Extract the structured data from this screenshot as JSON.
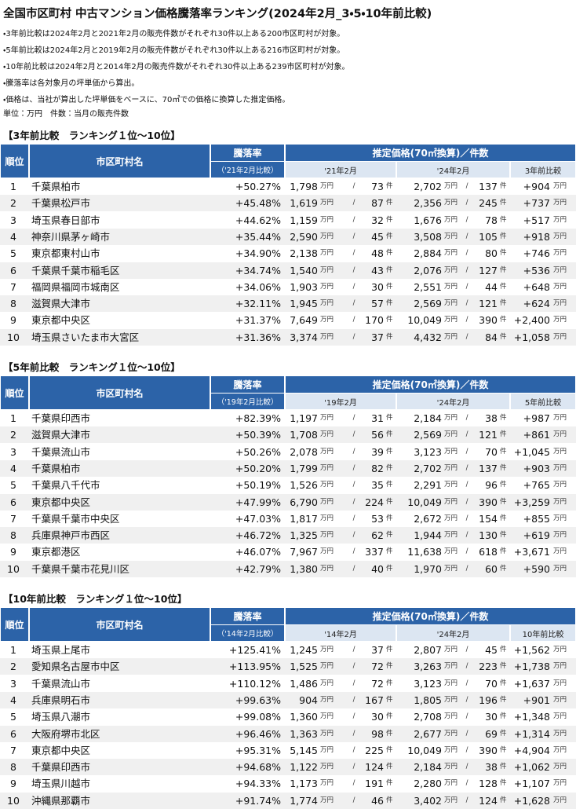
{
  "header": {
    "title": "全国市区町村 中古マンション価格騰落率ランキング(2024年2月_3・5・10年前比較)",
    "notes": [
      "・3年前比較は2024年2月と2021年2月の販売件数がそれぞれ30件以上ある200市区町村が対象。",
      "・5年前比較は2024年2月と2019年2月の販売件数がそれぞれ30件以上ある216市区町村が対象。",
      "・10年前比較は2024年2月と2014年2月の販売件数がそれぞれ30件以上ある239市区町村が対象。",
      "・騰落率は各対象月の坪単価から算出。",
      "・価格は、当社が算出した坪単価をベースに、70㎡での価格に換算した推定価格。"
    ],
    "unit_note": "単位：万円　件数：当月の販売件数"
  },
  "units": {
    "yen": "万円",
    "slash": "/",
    "count": "件"
  },
  "sections": [
    {
      "heading": "【3年前比較　ランキング１位～10位】",
      "columns": {
        "rank": "順位",
        "name": "市区町村名",
        "rate": "騰落率",
        "rate_sub": "（'21年2月比較）",
        "price_group": "推定価格(70㎡換算)／件数",
        "old": "'21年2月",
        "new": "'24年2月",
        "diff": "3年前比較"
      },
      "rows": [
        [
          1,
          "千葉県柏市",
          "+50.27%",
          "1,798",
          "73",
          "2,702",
          "137",
          "+904"
        ],
        [
          2,
          "千葉県松戸市",
          "+45.48%",
          "1,619",
          "87",
          "2,356",
          "245",
          "+737"
        ],
        [
          3,
          "埼玉県春日部市",
          "+44.62%",
          "1,159",
          "32",
          "1,676",
          "78",
          "+517"
        ],
        [
          4,
          "神奈川県茅ヶ崎市",
          "+35.44%",
          "2,590",
          "45",
          "3,508",
          "105",
          "+918"
        ],
        [
          5,
          "東京都東村山市",
          "+34.90%",
          "2,138",
          "48",
          "2,884",
          "80",
          "+746"
        ],
        [
          6,
          "千葉県千葉市稲毛区",
          "+34.74%",
          "1,540",
          "43",
          "2,076",
          "127",
          "+536"
        ],
        [
          7,
          "福岡県福岡市城南区",
          "+34.06%",
          "1,903",
          "30",
          "2,551",
          "44",
          "+648"
        ],
        [
          8,
          "滋賀県大津市",
          "+32.11%",
          "1,945",
          "57",
          "2,569",
          "121",
          "+624"
        ],
        [
          9,
          "東京都中央区",
          "+31.37%",
          "7,649",
          "170",
          "10,049",
          "390",
          "+2,400"
        ],
        [
          10,
          "埼玉県さいたま市大宮区",
          "+31.36%",
          "3,374",
          "37",
          "4,432",
          "84",
          "+1,058"
        ]
      ]
    },
    {
      "heading": "【5年前比較　ランキング１位～10位】",
      "columns": {
        "rank": "順位",
        "name": "市区町村名",
        "rate": "騰落率",
        "rate_sub": "（'19年2月比較）",
        "price_group": "推定価格(70㎡換算)／件数",
        "old": "'19年2月",
        "new": "'24年2月",
        "diff": "5年前比較"
      },
      "rows": [
        [
          1,
          "千葉県印西市",
          "+82.39%",
          "1,197",
          "31",
          "2,184",
          "38",
          "+987"
        ],
        [
          2,
          "滋賀県大津市",
          "+50.39%",
          "1,708",
          "56",
          "2,569",
          "121",
          "+861"
        ],
        [
          3,
          "千葉県流山市",
          "+50.26%",
          "2,078",
          "39",
          "3,123",
          "70",
          "+1,045"
        ],
        [
          4,
          "千葉県柏市",
          "+50.20%",
          "1,799",
          "82",
          "2,702",
          "137",
          "+903"
        ],
        [
          5,
          "千葉県八千代市",
          "+50.19%",
          "1,526",
          "35",
          "2,291",
          "96",
          "+765"
        ],
        [
          6,
          "東京都中央区",
          "+47.99%",
          "6,790",
          "224",
          "10,049",
          "390",
          "+3,259"
        ],
        [
          7,
          "千葉県千葉市中央区",
          "+47.03%",
          "1,817",
          "53",
          "2,672",
          "154",
          "+855"
        ],
        [
          8,
          "兵庫県神戸市西区",
          "+46.72%",
          "1,325",
          "62",
          "1,944",
          "130",
          "+619"
        ],
        [
          9,
          "東京都港区",
          "+46.07%",
          "7,967",
          "337",
          "11,638",
          "618",
          "+3,671"
        ],
        [
          10,
          "千葉県千葉市花見川区",
          "+42.79%",
          "1,380",
          "40",
          "1,970",
          "60",
          "+590"
        ]
      ]
    },
    {
      "heading": "【10年前比較　ランキング１位～10位】",
      "columns": {
        "rank": "順位",
        "name": "市区町村名",
        "rate": "騰落率",
        "rate_sub": "（'14年2月比較）",
        "price_group": "推定価格(70㎡換算)／件数",
        "old": "'14年2月",
        "new": "'24年2月",
        "diff": "10年前比較"
      },
      "rows": [
        [
          1,
          "埼玉県上尾市",
          "+125.41%",
          "1,245",
          "37",
          "2,807",
          "45",
          "+1,562"
        ],
        [
          2,
          "愛知県名古屋市中区",
          "+113.95%",
          "1,525",
          "72",
          "3,263",
          "223",
          "+1,738"
        ],
        [
          3,
          "千葉県流山市",
          "+110.12%",
          "1,486",
          "72",
          "3,123",
          "70",
          "+1,637"
        ],
        [
          4,
          "兵庫県明石市",
          "+99.63%",
          "904",
          "167",
          "1,805",
          "196",
          "+901"
        ],
        [
          5,
          "埼玉県八潮市",
          "+99.08%",
          "1,360",
          "30",
          "2,708",
          "30",
          "+1,348"
        ],
        [
          6,
          "大阪府堺市北区",
          "+96.46%",
          "1,363",
          "98",
          "2,677",
          "69",
          "+1,314"
        ],
        [
          7,
          "東京都中央区",
          "+95.31%",
          "5,145",
          "225",
          "10,049",
          "390",
          "+4,904"
        ],
        [
          8,
          "千葉県印西市",
          "+94.68%",
          "1,122",
          "124",
          "2,184",
          "38",
          "+1,062"
        ],
        [
          9,
          "埼玉県川越市",
          "+94.33%",
          "1,173",
          "191",
          "2,280",
          "128",
          "+1,107"
        ],
        [
          10,
          "沖縄県那覇市",
          "+91.74%",
          "1,774",
          "46",
          "3,402",
          "124",
          "+1,628"
        ]
      ]
    }
  ]
}
